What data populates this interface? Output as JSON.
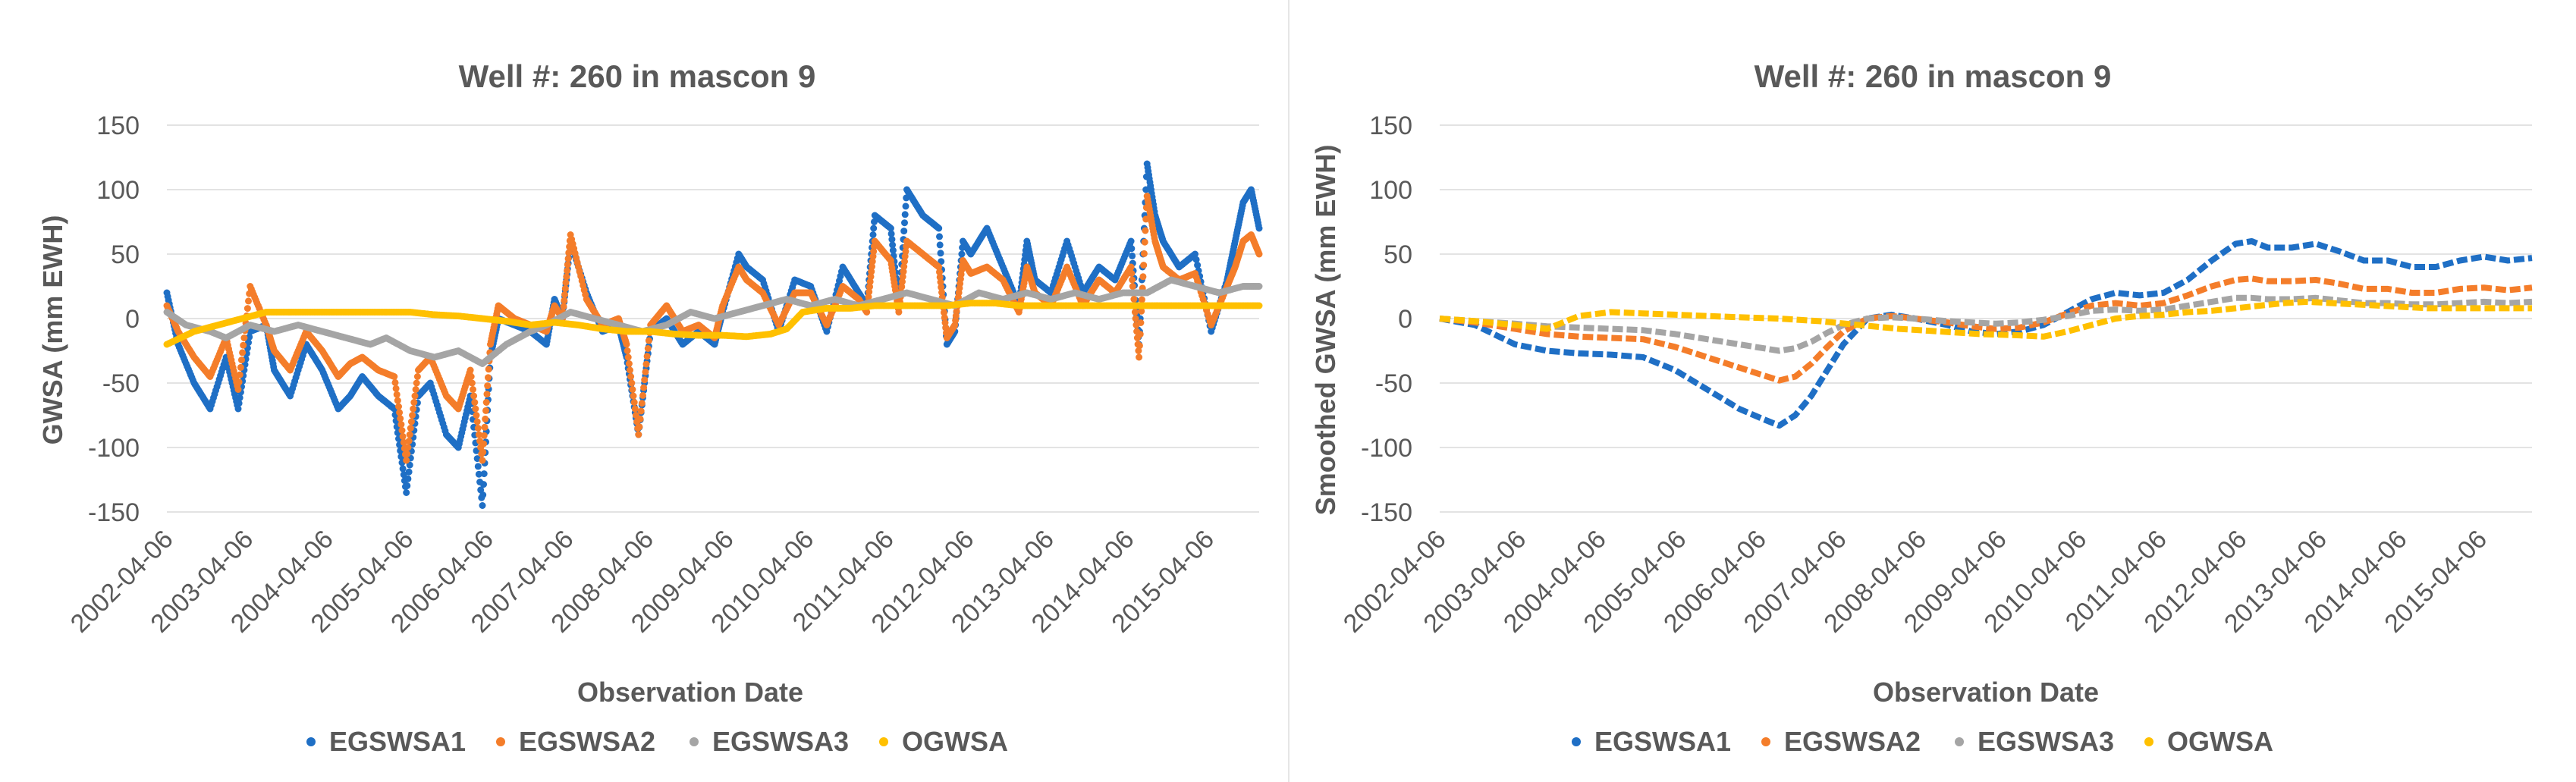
{
  "chart_data": [
    {
      "type": "scatter",
      "title": "Well #: 260 in mascon 9",
      "xlabel": "Observation Date",
      "ylabel": "GWSA (mm EWH)",
      "ylim": [
        -150,
        150
      ],
      "yticks": [
        150,
        100,
        50,
        0,
        -50,
        -100,
        -150
      ],
      "xlim": [
        2002.26,
        2015.9
      ],
      "xtick_labels": [
        "2002-04-06",
        "2003-04-06",
        "2004-04-06",
        "2005-04-06",
        "2006-04-06",
        "2007-04-06",
        "2008-04-06",
        "2009-04-06",
        "2010-04-06",
        "2011-04-06",
        "2012-04-06",
        "2013-04-06",
        "2014-04-06",
        "2015-04-06"
      ],
      "xtick_values": [
        2002.26,
        2003.26,
        2004.26,
        2005.26,
        2006.26,
        2007.26,
        2008.26,
        2009.26,
        2010.26,
        2011.26,
        2012.26,
        2013.26,
        2014.26,
        2015.26
      ],
      "grid": true,
      "legend_position": "bottom",
      "series": [
        {
          "name": "EGSWSA1",
          "color": "#1F6FC5",
          "x": [
            2002.26,
            2002.4,
            2002.6,
            2002.8,
            2003.0,
            2003.15,
            2003.3,
            2003.5,
            2003.6,
            2003.8,
            2004.0,
            2004.2,
            2004.4,
            2004.55,
            2004.7,
            2004.9,
            2005.1,
            2005.25,
            2005.4,
            2005.55,
            2005.75,
            2005.9,
            2006.05,
            2006.2,
            2006.3,
            2006.4,
            2006.6,
            2006.8,
            2007.0,
            2007.1,
            2007.2,
            2007.3,
            2007.5,
            2007.7,
            2007.9,
            2008.0,
            2008.15,
            2008.3,
            2008.5,
            2008.7,
            2008.9,
            2009.1,
            2009.2,
            2009.4,
            2009.5,
            2009.7,
            2009.9,
            2010.1,
            2010.3,
            2010.5,
            2010.7,
            2010.9,
            2011.0,
            2011.1,
            2011.3,
            2011.4,
            2011.5,
            2011.7,
            2011.9,
            2012.0,
            2012.1,
            2012.2,
            2012.3,
            2012.5,
            2012.7,
            2012.9,
            2013.0,
            2013.1,
            2013.3,
            2013.5,
            2013.7,
            2013.9,
            2014.1,
            2014.3,
            2014.4,
            2014.5,
            2014.6,
            2014.7,
            2014.9,
            2015.1,
            2015.3,
            2015.5,
            2015.6,
            2015.7,
            2015.8,
            2015.9
          ],
          "y": [
            20,
            -20,
            -50,
            -70,
            -30,
            -70,
            -10,
            -5,
            -40,
            -60,
            -20,
            -40,
            -70,
            -60,
            -45,
            -60,
            -70,
            -135,
            -60,
            -50,
            -90,
            -100,
            -60,
            -145,
            -30,
            0,
            -5,
            -10,
            -20,
            15,
            0,
            60,
            20,
            -10,
            -5,
            -30,
            -90,
            -10,
            0,
            -20,
            -10,
            -20,
            5,
            50,
            40,
            30,
            -10,
            30,
            25,
            -10,
            40,
            20,
            10,
            80,
            70,
            10,
            100,
            80,
            70,
            -20,
            -10,
            60,
            50,
            70,
            40,
            10,
            60,
            30,
            20,
            60,
            20,
            40,
            30,
            60,
            -20,
            120,
            80,
            60,
            40,
            50,
            -10,
            30,
            60,
            90,
            100,
            70
          ]
        },
        {
          "name": "EGSWSA2",
          "color": "#F47D2A",
          "x": [
            2002.26,
            2002.4,
            2002.6,
            2002.8,
            2003.0,
            2003.15,
            2003.3,
            2003.5,
            2003.6,
            2003.8,
            2004.0,
            2004.2,
            2004.4,
            2004.55,
            2004.7,
            2004.9,
            2005.1,
            2005.25,
            2005.4,
            2005.55,
            2005.75,
            2005.9,
            2006.05,
            2006.2,
            2006.3,
            2006.4,
            2006.6,
            2006.8,
            2007.0,
            2007.1,
            2007.2,
            2007.3,
            2007.5,
            2007.7,
            2007.9,
            2008.0,
            2008.15,
            2008.3,
            2008.5,
            2008.7,
            2008.9,
            2009.1,
            2009.2,
            2009.4,
            2009.5,
            2009.7,
            2009.9,
            2010.1,
            2010.3,
            2010.5,
            2010.7,
            2010.9,
            2011.0,
            2011.1,
            2011.3,
            2011.4,
            2011.5,
            2011.7,
            2011.9,
            2012.0,
            2012.1,
            2012.2,
            2012.3,
            2012.5,
            2012.7,
            2012.9,
            2013.0,
            2013.1,
            2013.3,
            2013.5,
            2013.7,
            2013.9,
            2014.1,
            2014.3,
            2014.4,
            2014.5,
            2014.6,
            2014.7,
            2014.9,
            2015.1,
            2015.3,
            2015.5,
            2015.6,
            2015.7,
            2015.8,
            2015.9
          ],
          "y": [
            10,
            -10,
            -30,
            -45,
            -15,
            -55,
            25,
            -5,
            -25,
            -40,
            -10,
            -25,
            -45,
            -35,
            -30,
            -40,
            -45,
            -110,
            -40,
            -30,
            -60,
            -70,
            -40,
            -110,
            -20,
            10,
            0,
            -5,
            -10,
            10,
            0,
            65,
            15,
            -5,
            0,
            -20,
            -90,
            -5,
            10,
            -10,
            -5,
            -15,
            10,
            40,
            30,
            20,
            -5,
            20,
            20,
            -5,
            25,
            15,
            5,
            60,
            45,
            5,
            60,
            50,
            40,
            -15,
            -5,
            45,
            35,
            40,
            30,
            5,
            40,
            20,
            10,
            40,
            10,
            30,
            20,
            40,
            -30,
            95,
            60,
            40,
            30,
            35,
            -5,
            25,
            40,
            60,
            65,
            50
          ]
        },
        {
          "name": "EGSWSA3",
          "color": "#A5A5A5",
          "x": [
            2002.26,
            2002.5,
            2002.8,
            2003.0,
            2003.3,
            2003.6,
            2003.9,
            2004.2,
            2004.5,
            2004.8,
            2005.0,
            2005.3,
            2005.6,
            2005.9,
            2006.2,
            2006.5,
            2006.8,
            2007.0,
            2007.3,
            2007.6,
            2007.9,
            2008.2,
            2008.5,
            2008.8,
            2009.1,
            2009.4,
            2009.7,
            2010.0,
            2010.3,
            2010.6,
            2010.9,
            2011.2,
            2011.5,
            2011.8,
            2012.1,
            2012.4,
            2012.7,
            2013.0,
            2013.3,
            2013.6,
            2013.9,
            2014.2,
            2014.5,
            2014.8,
            2015.1,
            2015.4,
            2015.7,
            2015.9
          ],
          "y": [
            5,
            -5,
            -10,
            -15,
            -5,
            -10,
            -5,
            -10,
            -15,
            -20,
            -15,
            -25,
            -30,
            -25,
            -35,
            -20,
            -10,
            -5,
            5,
            0,
            -5,
            -10,
            -5,
            5,
            0,
            5,
            10,
            15,
            10,
            15,
            10,
            15,
            20,
            15,
            10,
            20,
            15,
            20,
            15,
            20,
            15,
            20,
            20,
            30,
            25,
            20,
            25,
            25
          ]
        },
        {
          "name": "OGWSA",
          "color": "#FFC000",
          "x": [
            2002.26,
            2002.6,
            2002.9,
            2003.2,
            2003.5,
            2003.8,
            2004.1,
            2004.4,
            2004.7,
            2005.0,
            2005.3,
            2005.6,
            2005.9,
            2006.2,
            2006.5,
            2006.8,
            2007.1,
            2007.4,
            2007.7,
            2008.0,
            2008.3,
            2008.6,
            2008.9,
            2009.2,
            2009.5,
            2009.8,
            2010.0,
            2010.2,
            2010.5,
            2010.8,
            2011.1,
            2011.4,
            2011.7,
            2012.0,
            2012.3,
            2012.6,
            2012.9,
            2013.2,
            2013.5,
            2013.8,
            2014.1,
            2014.4,
            2014.7,
            2015.0,
            2015.3,
            2015.6,
            2015.9
          ],
          "y": [
            -20,
            -10,
            -5,
            0,
            5,
            5,
            5,
            5,
            5,
            5,
            5,
            3,
            2,
            0,
            -2,
            -5,
            -3,
            -5,
            -8,
            -10,
            -10,
            -12,
            -13,
            -13,
            -14,
            -12,
            -8,
            5,
            8,
            8,
            10,
            10,
            10,
            10,
            12,
            12,
            10,
            10,
            10,
            10,
            10,
            10,
            10,
            10,
            10,
            10,
            10
          ]
        }
      ]
    },
    {
      "type": "line",
      "title": "Well #: 260 in mascon 9",
      "xlabel": "Observation Date",
      "ylabel": "Smoothed GWSA (mm EWH)",
      "ylim": [
        -150,
        150
      ],
      "yticks": [
        150,
        100,
        50,
        0,
        -50,
        -100,
        -150
      ],
      "xlim": [
        2002.26,
        2015.9
      ],
      "xtick_labels": [
        "2002-04-06",
        "2003-04-06",
        "2004-04-06",
        "2005-04-06",
        "2006-04-06",
        "2007-04-06",
        "2008-04-06",
        "2009-04-06",
        "2010-04-06",
        "2011-04-06",
        "2012-04-06",
        "2013-04-06",
        "2014-04-06",
        "2015-04-06"
      ],
      "xtick_values": [
        2002.26,
        2003.26,
        2004.26,
        2005.26,
        2006.26,
        2007.26,
        2008.26,
        2009.26,
        2010.26,
        2011.26,
        2012.26,
        2013.26,
        2014.26,
        2015.26
      ],
      "grid": true,
      "legend_position": "bottom",
      "series": [
        {
          "name": "EGSWSA1",
          "color": "#1F6FC5",
          "x": [
            2002.26,
            2002.7,
            2003.2,
            2003.6,
            2004.0,
            2004.4,
            2004.8,
            2005.2,
            2005.6,
            2006.0,
            2006.3,
            2006.5,
            2006.7,
            2006.9,
            2007.1,
            2007.3,
            2007.6,
            2007.9,
            2008.2,
            2008.6,
            2008.9,
            2009.2,
            2009.5,
            2009.8,
            2010.1,
            2010.4,
            2010.7,
            2011.0,
            2011.3,
            2011.6,
            2011.9,
            2012.2,
            2012.4,
            2012.6,
            2012.9,
            2013.2,
            2013.5,
            2013.8,
            2014.1,
            2014.4,
            2014.7,
            2015.0,
            2015.3,
            2015.6,
            2015.9
          ],
          "y": [
            0,
            -5,
            -20,
            -25,
            -27,
            -28,
            -30,
            -40,
            -55,
            -70,
            -78,
            -83,
            -75,
            -60,
            -40,
            -20,
            0,
            3,
            0,
            -5,
            -10,
            -12,
            -10,
            -5,
            5,
            15,
            20,
            18,
            20,
            30,
            45,
            58,
            60,
            55,
            55,
            58,
            52,
            45,
            45,
            40,
            40,
            45,
            48,
            45,
            47
          ]
        },
        {
          "name": "EGSWSA2",
          "color": "#F47D2A",
          "x": [
            2002.26,
            2002.7,
            2003.2,
            2003.6,
            2004.0,
            2004.4,
            2004.8,
            2005.2,
            2005.6,
            2006.0,
            2006.3,
            2006.5,
            2006.7,
            2006.9,
            2007.1,
            2007.3,
            2007.6,
            2007.9,
            2008.2,
            2008.6,
            2008.9,
            2009.2,
            2009.5,
            2009.8,
            2010.1,
            2010.4,
            2010.7,
            2011.0,
            2011.3,
            2011.6,
            2011.9,
            2012.2,
            2012.4,
            2012.6,
            2012.9,
            2013.2,
            2013.5,
            2013.8,
            2014.1,
            2014.4,
            2014.7,
            2015.0,
            2015.3,
            2015.6,
            2015.9
          ],
          "y": [
            0,
            -3,
            -8,
            -12,
            -14,
            -15,
            -16,
            -22,
            -30,
            -38,
            -44,
            -48,
            -45,
            -35,
            -22,
            -10,
            0,
            2,
            0,
            -3,
            -6,
            -8,
            -7,
            -3,
            4,
            10,
            12,
            10,
            12,
            18,
            25,
            30,
            31,
            29,
            29,
            30,
            27,
            23,
            23,
            20,
            20,
            23,
            24,
            22,
            24
          ]
        },
        {
          "name": "EGSWSA3",
          "color": "#A5A5A5",
          "x": [
            2002.26,
            2002.7,
            2003.2,
            2003.6,
            2004.0,
            2004.4,
            2004.8,
            2005.2,
            2005.6,
            2006.0,
            2006.3,
            2006.5,
            2006.7,
            2006.9,
            2007.1,
            2007.3,
            2007.6,
            2007.9,
            2008.2,
            2008.6,
            2008.9,
            2009.2,
            2009.5,
            2009.8,
            2010.1,
            2010.4,
            2010.7,
            2011.0,
            2011.3,
            2011.6,
            2011.9,
            2012.2,
            2012.4,
            2012.6,
            2012.9,
            2013.2,
            2013.5,
            2013.8,
            2014.1,
            2014.4,
            2014.7,
            2015.0,
            2015.3,
            2015.6,
            2015.9
          ],
          "y": [
            0,
            -2,
            -4,
            -6,
            -7,
            -8,
            -9,
            -12,
            -16,
            -20,
            -23,
            -25,
            -23,
            -18,
            -11,
            -5,
            0,
            1,
            0,
            -2,
            -3,
            -4,
            -3,
            -1,
            2,
            6,
            7,
            6,
            7,
            10,
            13,
            16,
            16,
            15,
            15,
            16,
            14,
            12,
            12,
            11,
            11,
            12,
            13,
            12,
            13
          ]
        },
        {
          "name": "OGWSA",
          "color": "#FFC000",
          "x": [
            2002.26,
            2002.7,
            2003.2,
            2003.6,
            2004.0,
            2004.4,
            2004.8,
            2005.2,
            2005.6,
            2006.0,
            2006.5,
            2007.0,
            2007.5,
            2008.0,
            2008.5,
            2009.0,
            2009.5,
            2009.8,
            2010.1,
            2010.4,
            2010.7,
            2011.0,
            2011.3,
            2011.6,
            2011.9,
            2012.2,
            2012.5,
            2012.8,
            2013.1,
            2013.4,
            2013.7,
            2014.0,
            2014.3,
            2014.6,
            2014.9,
            2015.2,
            2015.5,
            2015.9
          ],
          "y": [
            0,
            -2,
            -5,
            -8,
            2,
            5,
            4,
            3,
            2,
            1,
            0,
            -2,
            -5,
            -8,
            -10,
            -12,
            -13,
            -14,
            -10,
            -5,
            0,
            2,
            3,
            5,
            6,
            8,
            10,
            12,
            13,
            12,
            11,
            10,
            9,
            8,
            8,
            8,
            8,
            8
          ]
        }
      ]
    }
  ]
}
